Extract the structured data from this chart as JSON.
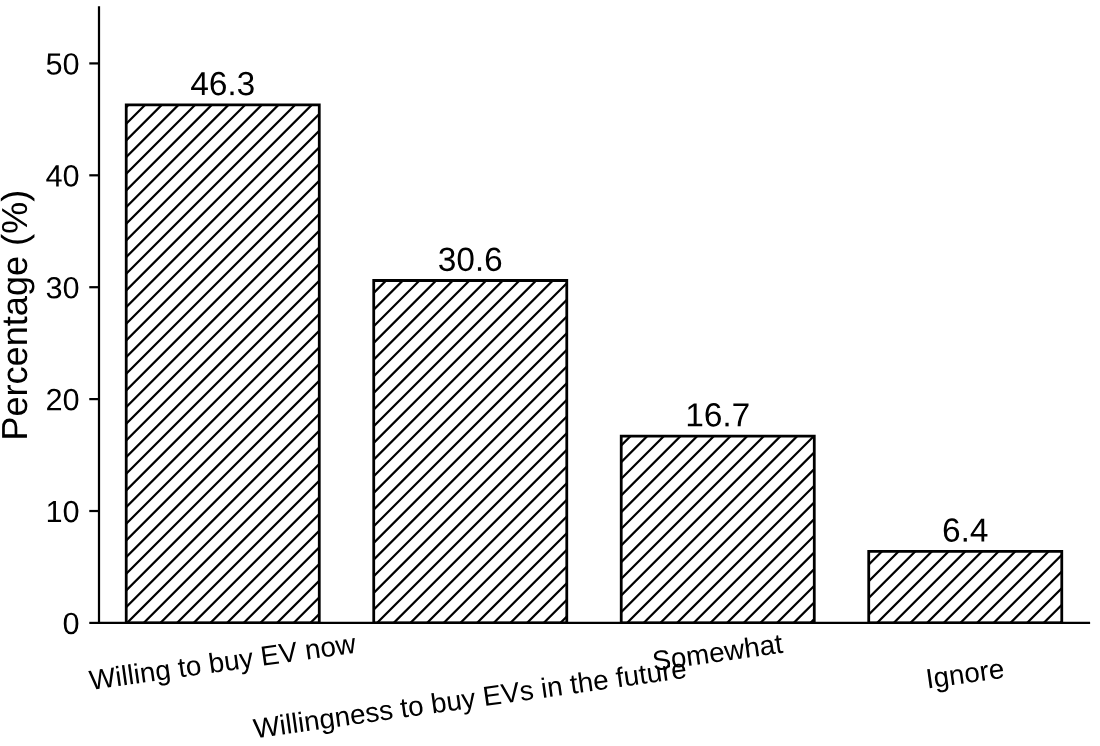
{
  "chart_data": {
    "type": "bar",
    "ylabel": "Percentage (%)",
    "categories": [
      "Willing to buy EV now",
      "Willingness to buy EVs in the future",
      "Somewhat",
      "Ignore"
    ],
    "values": [
      46.3,
      30.6,
      16.7,
      6.4
    ],
    "color": "#000000",
    "ylim": [
      0,
      55
    ],
    "yticks": [
      0,
      10,
      20,
      30,
      40,
      50
    ],
    "grid": false,
    "data_labels": true
  }
}
